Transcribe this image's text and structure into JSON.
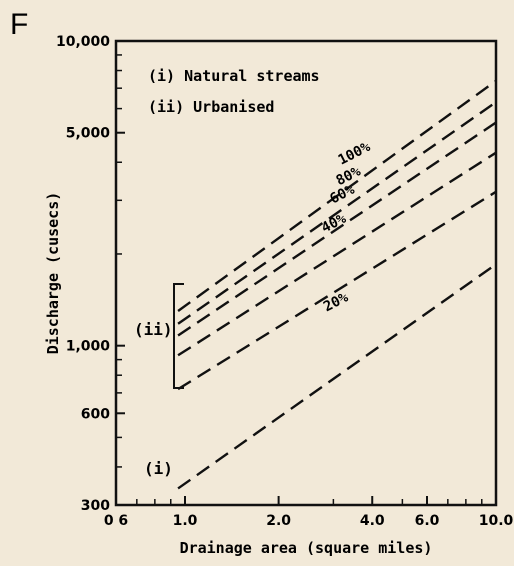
{
  "panel_letter": "F",
  "chart_data": {
    "type": "line",
    "title": "",
    "xlabel": "Drainage area (square miles)",
    "ylabel": "Discharge (cusecs)",
    "xscale": "log",
    "yscale": "log",
    "xlim": [
      0.6,
      10.0
    ],
    "ylim": [
      300,
      10000
    ],
    "xticks": [
      {
        "value": 0.6,
        "label": "0 6"
      },
      {
        "value": 1.0,
        "label": "1.0"
      },
      {
        "value": 2.0,
        "label": "2.0"
      },
      {
        "value": 4.0,
        "label": "4.0"
      },
      {
        "value": 6.0,
        "label": "6.0"
      },
      {
        "value": 10.0,
        "label": "10.0"
      }
    ],
    "yticks": [
      {
        "value": 300,
        "label": "300"
      },
      {
        "value": 600,
        "label": "600"
      },
      {
        "value": 1000,
        "label": "1,000"
      },
      {
        "value": 5000,
        "label": "5,000"
      },
      {
        "value": 10000,
        "label": "10,000"
      }
    ],
    "legend": {
      "placement": "top-left",
      "entries": [
        "(i)  Natural streams",
        "(ii) Urbanised"
      ]
    },
    "annotations": {
      "natural_marker": "(i)",
      "urbanised_marker": "(ii)"
    },
    "line_style": "dashed",
    "series": [
      {
        "name": "",
        "x": [
          0.95,
          10.0
        ],
        "y": [
          340,
          1850
        ]
      },
      {
        "name": "20%",
        "x": [
          0.95,
          10.0
        ],
        "y": [
          720,
          3200
        ]
      },
      {
        "name": "40%",
        "x": [
          0.95,
          10.0
        ],
        "y": [
          930,
          4300
        ]
      },
      {
        "name": "60%",
        "x": [
          0.95,
          10.0
        ],
        "y": [
          1080,
          5400
        ]
      },
      {
        "name": "80%",
        "x": [
          0.95,
          10.0
        ],
        "y": [
          1180,
          6300
        ]
      },
      {
        "name": "100%",
        "x": [
          0.95,
          10.0
        ],
        "y": [
          1300,
          7400
        ]
      }
    ],
    "series_label_positions": [
      {
        "label": "20%",
        "x": 3.1,
        "y": 1350
      },
      {
        "label": "40%",
        "x": 3.05,
        "y": 2450
      },
      {
        "label": "60%",
        "x": 3.25,
        "y": 3050
      },
      {
        "label": "80%",
        "x": 3.4,
        "y": 3500
      },
      {
        "label": "100%",
        "x": 3.55,
        "y": 4150
      }
    ],
    "grid": false,
    "colors": {
      "ink": "#111111",
      "paper": "#f2e9d8"
    }
  }
}
